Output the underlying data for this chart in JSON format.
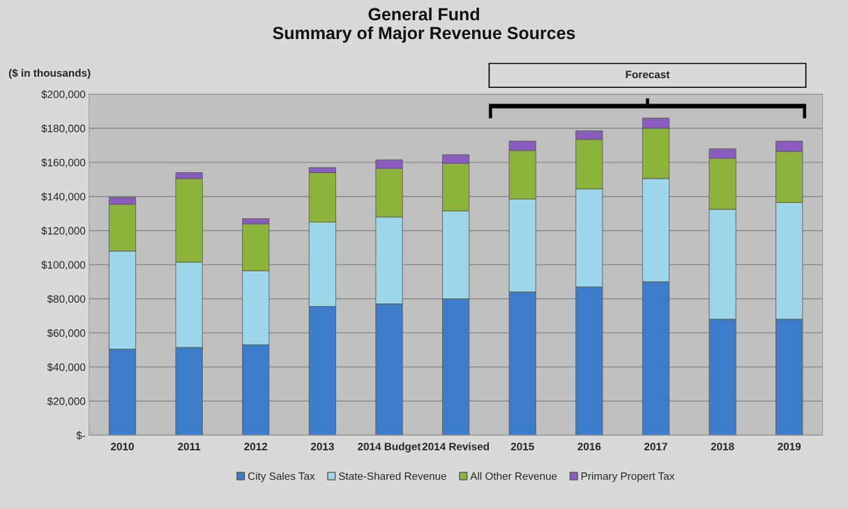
{
  "chart_data": {
    "type": "bar",
    "stacked": true,
    "title": "General Fund\nSummary of Major Revenue Sources",
    "categories": [
      "2010",
      "2011",
      "2012",
      "2013",
      "2014 Budget",
      "2014 Revised",
      "2015",
      "2016",
      "2017",
      "2018",
      "2019"
    ],
    "series": [
      {
        "name": "City Sales Tax",
        "color": "#3d7cc9",
        "values": [
          50500,
          51500,
          53000,
          75500,
          77000,
          80000,
          84000,
          87000,
          90000,
          68000,
          68000
        ]
      },
      {
        "name": "State-Shared Revenue",
        "color": "#9dd6e8",
        "values": [
          57500,
          50000,
          43500,
          49500,
          51000,
          51500,
          54500,
          57500,
          60500,
          64500,
          68500
        ]
      },
      {
        "name": "All Other Revenue",
        "color": "#8db33c",
        "values": [
          27500,
          49000,
          27500,
          29000,
          28500,
          28000,
          28500,
          29000,
          29500,
          30000,
          30000
        ]
      },
      {
        "name": "Primary Propert Tax",
        "color": "#8a5cbf",
        "values": [
          4000,
          3500,
          3000,
          3000,
          5000,
          5000,
          5500,
          5000,
          6000,
          5500,
          6000
        ]
      }
    ],
    "ylim": [
      0,
      200000
    ],
    "yticks": [
      {
        "value": 0,
        "label": "$-"
      },
      {
        "value": 20000,
        "label": "$20,000"
      },
      {
        "value": 40000,
        "label": "$40,000"
      },
      {
        "value": 60000,
        "label": "$60,000"
      },
      {
        "value": 80000,
        "label": "$80,000"
      },
      {
        "value": 100000,
        "label": "$100,000"
      },
      {
        "value": 120000,
        "label": "$120,000"
      },
      {
        "value": 140000,
        "label": "$140,000"
      },
      {
        "value": 160000,
        "label": "$160,000"
      },
      {
        "value": 180000,
        "label": "$180,000"
      },
      {
        "value": 200000,
        "label": "$200,000"
      }
    ],
    "grid": "y",
    "legend": "bottom",
    "annotations": [
      "($ in thousands)",
      "Forecast"
    ]
  }
}
